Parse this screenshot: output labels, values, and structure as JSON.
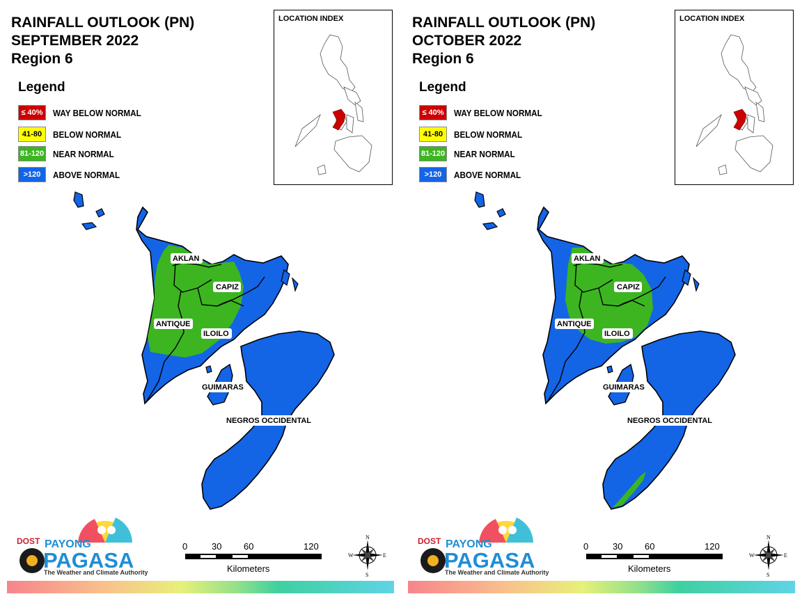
{
  "panels": [
    {
      "title_line1": "RAINFALL OUTLOOK (PN)",
      "title_line2": "SEPTEMBER 2022",
      "title_line3": "Region 6"
    },
    {
      "title_line1": "RAINFALL OUTLOOK (PN)",
      "title_line2": "OCTOBER 2022",
      "title_line3": "Region 6"
    }
  ],
  "legend": {
    "title": "Legend",
    "items": [
      {
        "range": "≤ 40%",
        "label": "WAY BELOW NORMAL",
        "color": "#cc0000",
        "text_color": "#ffffff"
      },
      {
        "range": "41-80",
        "label": "BELOW NORMAL",
        "color": "#ffff00",
        "text_color": "#000000"
      },
      {
        "range": "81-120",
        "label": "NEAR NORMAL",
        "color": "#3cb521",
        "text_color": "#ffffff"
      },
      {
        "range": ">120",
        "label": "ABOVE NORMAL",
        "color": "#1464e6",
        "text_color": "#ffffff"
      }
    ]
  },
  "inset": {
    "title": "LOCATION INDEX",
    "highlight_color": "#cc0000"
  },
  "provinces": {
    "aklan": "AKLAN",
    "capiz": "CAPIZ",
    "antique": "ANTIQUE",
    "iloilo": "ILOILO",
    "guimaras": "GUIMARAS",
    "negros": "NEGROS OCCIDENTAL"
  },
  "scale": {
    "ticks": [
      "0",
      "30",
      "60",
      "120"
    ],
    "units": "Kilometers"
  },
  "compass": {
    "n": "N",
    "s": "S",
    "e": "E",
    "w": "W"
  },
  "logo": {
    "dost": "DOST",
    "payong": "PAYONG",
    "pagasa": "PAGASA",
    "tagline": "The Weather and Climate Authority"
  },
  "colors": {
    "above_normal": "#1464e6",
    "near_normal": "#3cb521",
    "outline": "#000000"
  }
}
